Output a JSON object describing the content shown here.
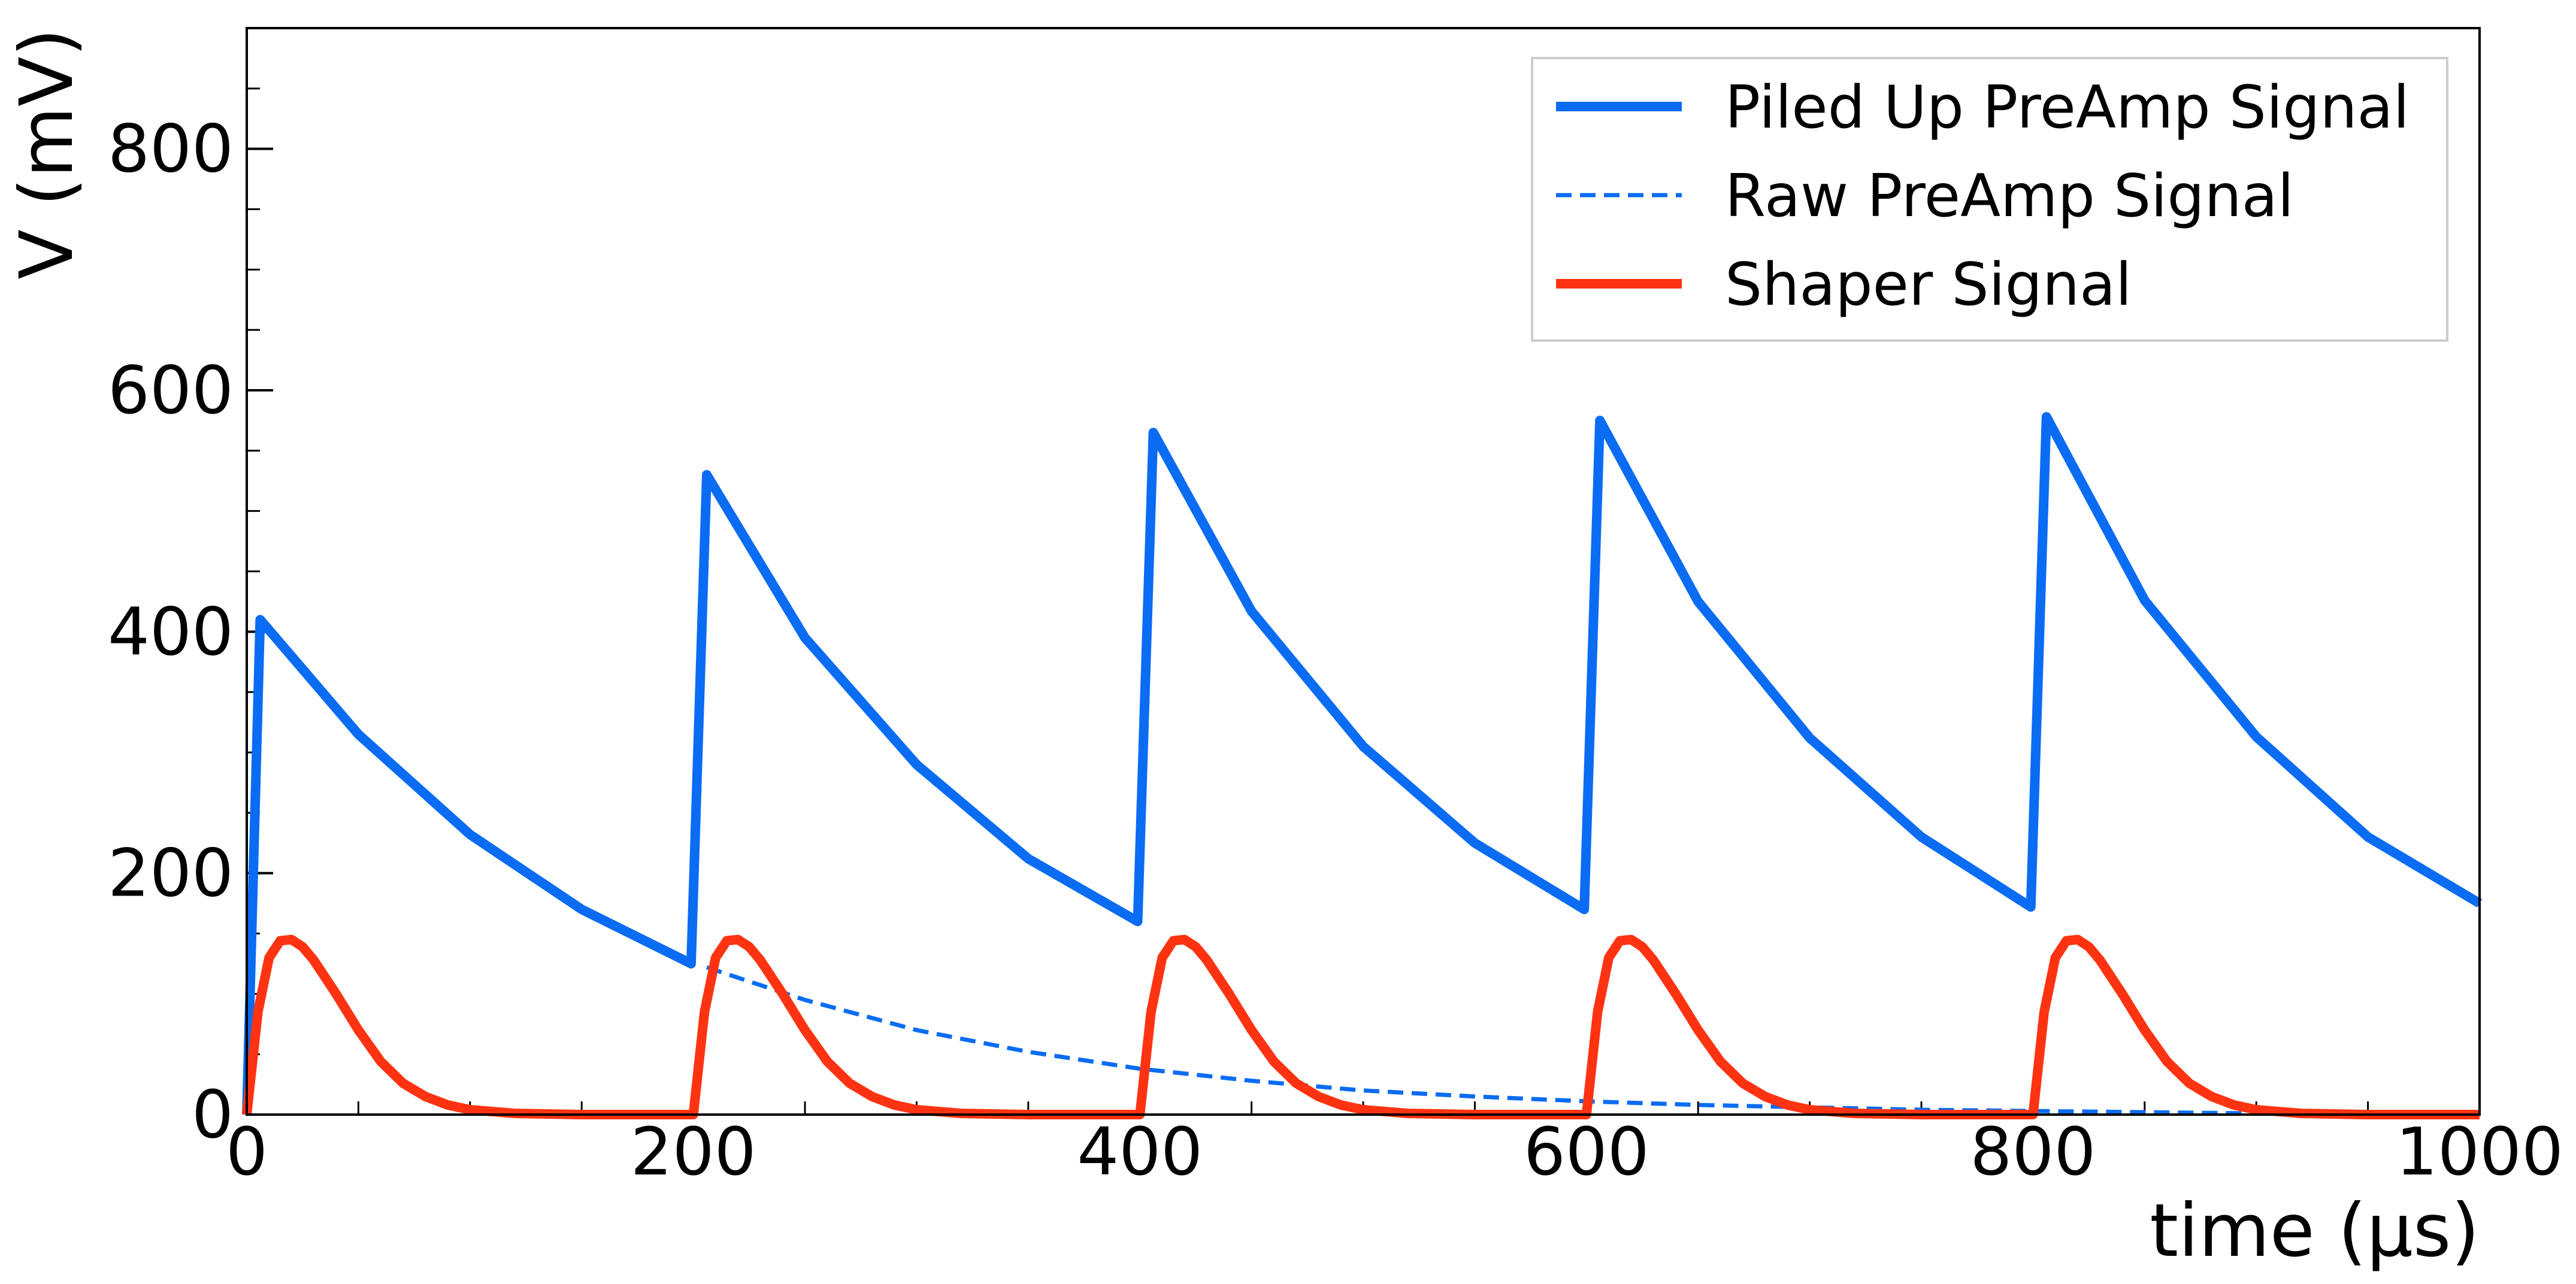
{
  "chart_data": {
    "type": "line",
    "xlabel": "time (μs)",
    "ylabel": "V (mV)",
    "xlim": [
      0,
      1000
    ],
    "ylim": [
      0,
      900
    ],
    "xticks": [
      0,
      200,
      400,
      600,
      800,
      1000
    ],
    "yticks": [
      0,
      200,
      400,
      600,
      800
    ],
    "x_tick_labels": [
      "0",
      "200",
      "400",
      "600",
      "800",
      "1000"
    ],
    "y_tick_labels": [
      "0",
      "200",
      "400",
      "600",
      "800"
    ],
    "x_minor_step": 50,
    "y_minor_step": 50,
    "grid": false,
    "legend_position": "upper right",
    "series": [
      {
        "name": "Piled Up PreAmp Signal",
        "color": "#0a6cf2",
        "style": "solid",
        "x": [
          0,
          6,
          50,
          100,
          150,
          199,
          206,
          250,
          300,
          350,
          399,
          406,
          450,
          500,
          550,
          599,
          606,
          650,
          700,
          750,
          799,
          806,
          850,
          900,
          950,
          1000
        ],
        "y": [
          0,
          410,
          315,
          232,
          170,
          125,
          530,
          395,
          290,
          212,
          160,
          565,
          417,
          305,
          225,
          170,
          575,
          425,
          312,
          230,
          172,
          578,
          426,
          313,
          230,
          175
        ]
      },
      {
        "name": "Raw PreAmp Signal",
        "color": "#0a6cf2",
        "style": "dashed",
        "x": [
          206,
          250,
          300,
          350,
          400,
          450,
          500,
          550,
          600,
          650,
          700,
          750,
          800,
          850,
          900,
          950,
          1000
        ],
        "y": [
          122,
          95,
          70,
          52,
          38,
          28,
          20,
          15,
          11,
          8,
          6,
          4,
          3,
          2,
          1,
          1,
          0
        ]
      },
      {
        "name": "Shaper Signal",
        "color": "#ff3311",
        "style": "solid",
        "pulse_starts": [
          0,
          200,
          400,
          600,
          800
        ],
        "pulse_shape": {
          "x": [
            0,
            5,
            10,
            15,
            20,
            25,
            30,
            40,
            50,
            60,
            70,
            80,
            90,
            100,
            120,
            150,
            200
          ],
          "y": [
            0,
            85,
            130,
            144,
            145,
            139,
            128,
            100,
            70,
            44,
            26,
            15,
            8,
            4,
            1,
            0,
            0
          ]
        }
      }
    ]
  }
}
